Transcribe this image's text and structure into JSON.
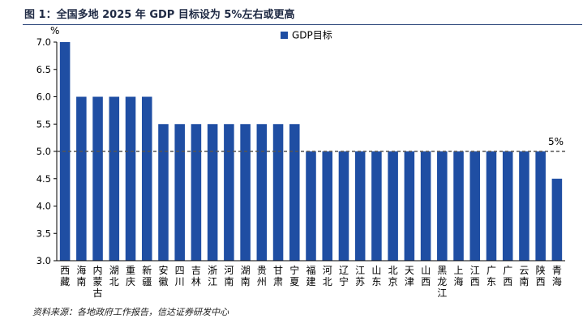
{
  "figure": {
    "title": "图 1：全国多地 2025 年 GDP 目标设为 5%左右或更高",
    "source": "资料来源：各地政府工作报告，信达证券研发中心"
  },
  "chart_data": {
    "type": "bar",
    "ylabel": "%",
    "ylim": [
      3.0,
      7.0
    ],
    "yticks": [
      "3.0",
      "3.5",
      "4.0",
      "4.5",
      "5.0",
      "5.5",
      "6.0",
      "6.5",
      "7.0"
    ],
    "legend": {
      "label": "GDP目标",
      "placement": "top-right"
    },
    "reference_line": {
      "value": 5.0,
      "label": "5%"
    },
    "series_color": "#1f4ea3",
    "categories": [
      "西藏",
      "海南",
      "内蒙古",
      "湖北",
      "重庆",
      "新疆",
      "安徽",
      "四川",
      "吉林",
      "浙江",
      "河南",
      "湖南",
      "贵州",
      "甘肃",
      "宁夏",
      "福建",
      "河北",
      "辽宁",
      "江苏",
      "山东",
      "北京",
      "天津",
      "山西",
      "黑龙江",
      "上海",
      "江西",
      "广东",
      "广西",
      "云南",
      "陕西",
      "青海"
    ],
    "values": [
      7.0,
      6.0,
      6.0,
      6.0,
      6.0,
      6.0,
      5.5,
      5.5,
      5.5,
      5.5,
      5.5,
      5.5,
      5.5,
      5.5,
      5.5,
      5.0,
      5.0,
      5.0,
      5.0,
      5.0,
      5.0,
      5.0,
      5.0,
      5.0,
      5.0,
      5.0,
      5.0,
      5.0,
      5.0,
      5.0,
      4.5
    ]
  }
}
